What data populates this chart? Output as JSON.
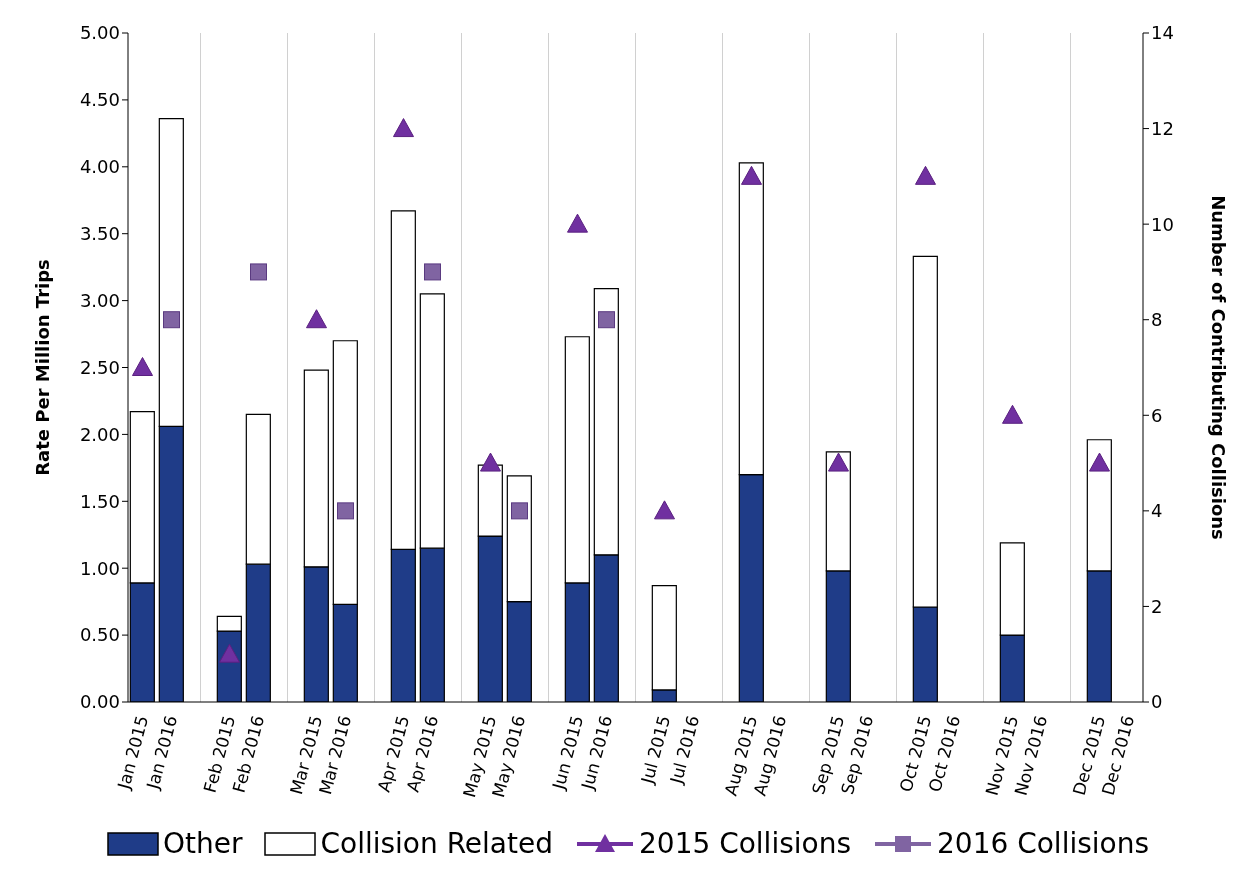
{
  "chart_data": {
    "type": "bar",
    "stacked": true,
    "ylabel": "Rate Per Million Trips",
    "y2label": "Number of Contributing Collisions",
    "categories": [
      "Jan 2015",
      "Jan 2016",
      null,
      "Feb 2015",
      "Feb 2016",
      null,
      "Mar 2015",
      "Mar 2016",
      null,
      "Apr 2015",
      "Apr 2016",
      null,
      "May 2015",
      "May 2016",
      null,
      "Jun 2015",
      "Jun 2016",
      null,
      "Jul 2015",
      "Jul 2016",
      null,
      "Aug 2015",
      "Aug 2016",
      null,
      "Sep 2015",
      "Sep 2016",
      null,
      "Oct 2015",
      "Oct 2016",
      null,
      "Nov 2015",
      "Nov 2016",
      null,
      "Dec 2015",
      "Dec 2016"
    ],
    "series": [
      {
        "name": "Other",
        "color": "#1f3c88",
        "values": [
          0.89,
          2.06,
          null,
          0.53,
          1.03,
          null,
          1.01,
          0.73,
          null,
          1.14,
          1.15,
          null,
          1.24,
          0.75,
          null,
          0.89,
          1.1,
          null,
          0.09,
          null,
          null,
          1.7,
          null,
          null,
          0.98,
          null,
          null,
          0.71,
          null,
          null,
          0.5,
          null,
          null,
          0.98,
          null
        ]
      },
      {
        "name": "Collision Related",
        "color": "#ffffff",
        "values": [
          1.28,
          2.3,
          null,
          0.11,
          1.12,
          null,
          1.47,
          1.97,
          null,
          2.53,
          1.9,
          null,
          0.53,
          0.94,
          null,
          1.84,
          1.99,
          null,
          0.78,
          null,
          null,
          2.33,
          null,
          null,
          0.89,
          null,
          null,
          2.62,
          null,
          null,
          0.69,
          null,
          null,
          0.98,
          null
        ]
      },
      {
        "name": "2015 Collisions",
        "type": "scatter",
        "axis": "y2",
        "marker": "triangle",
        "color": "#7030a0",
        "values": [
          7,
          null,
          null,
          1,
          null,
          null,
          8,
          null,
          null,
          12,
          null,
          null,
          5,
          null,
          null,
          10,
          null,
          null,
          4,
          null,
          null,
          11,
          null,
          null,
          5,
          null,
          null,
          11,
          null,
          null,
          6,
          null,
          null,
          5,
          null
        ]
      },
      {
        "name": "2016 Collisions",
        "type": "scatter",
        "axis": "y2",
        "marker": "square",
        "color": "#8064a2",
        "values": [
          null,
          8,
          null,
          null,
          9,
          null,
          null,
          4,
          null,
          null,
          9,
          null,
          null,
          4,
          null,
          null,
          8,
          null,
          null,
          null,
          null,
          null,
          null,
          null,
          null,
          null,
          null,
          null,
          null,
          null,
          null,
          null,
          null,
          null,
          null
        ]
      }
    ],
    "ylim": [
      0,
      5
    ],
    "yticks": [
      {
        "value": 0,
        "label": "0.00"
      },
      {
        "value": 0.5,
        "label": "0.50"
      },
      {
        "value": 1,
        "label": "1.00"
      },
      {
        "value": 1.5,
        "label": "1.50"
      },
      {
        "value": 2,
        "label": "2.00"
      },
      {
        "value": 2.5,
        "label": "2.50"
      },
      {
        "value": 3,
        "label": "3.00"
      },
      {
        "value": 3.5,
        "label": "3.50"
      },
      {
        "value": 4,
        "label": "4.00"
      },
      {
        "value": 4.5,
        "label": "4.50"
      },
      {
        "value": 5,
        "label": "5.00"
      }
    ],
    "y2lim": [
      0,
      14
    ],
    "y2ticks": [
      0,
      2,
      4,
      6,
      8,
      10,
      12,
      14
    ],
    "grid": "x",
    "legend": "bottom"
  }
}
